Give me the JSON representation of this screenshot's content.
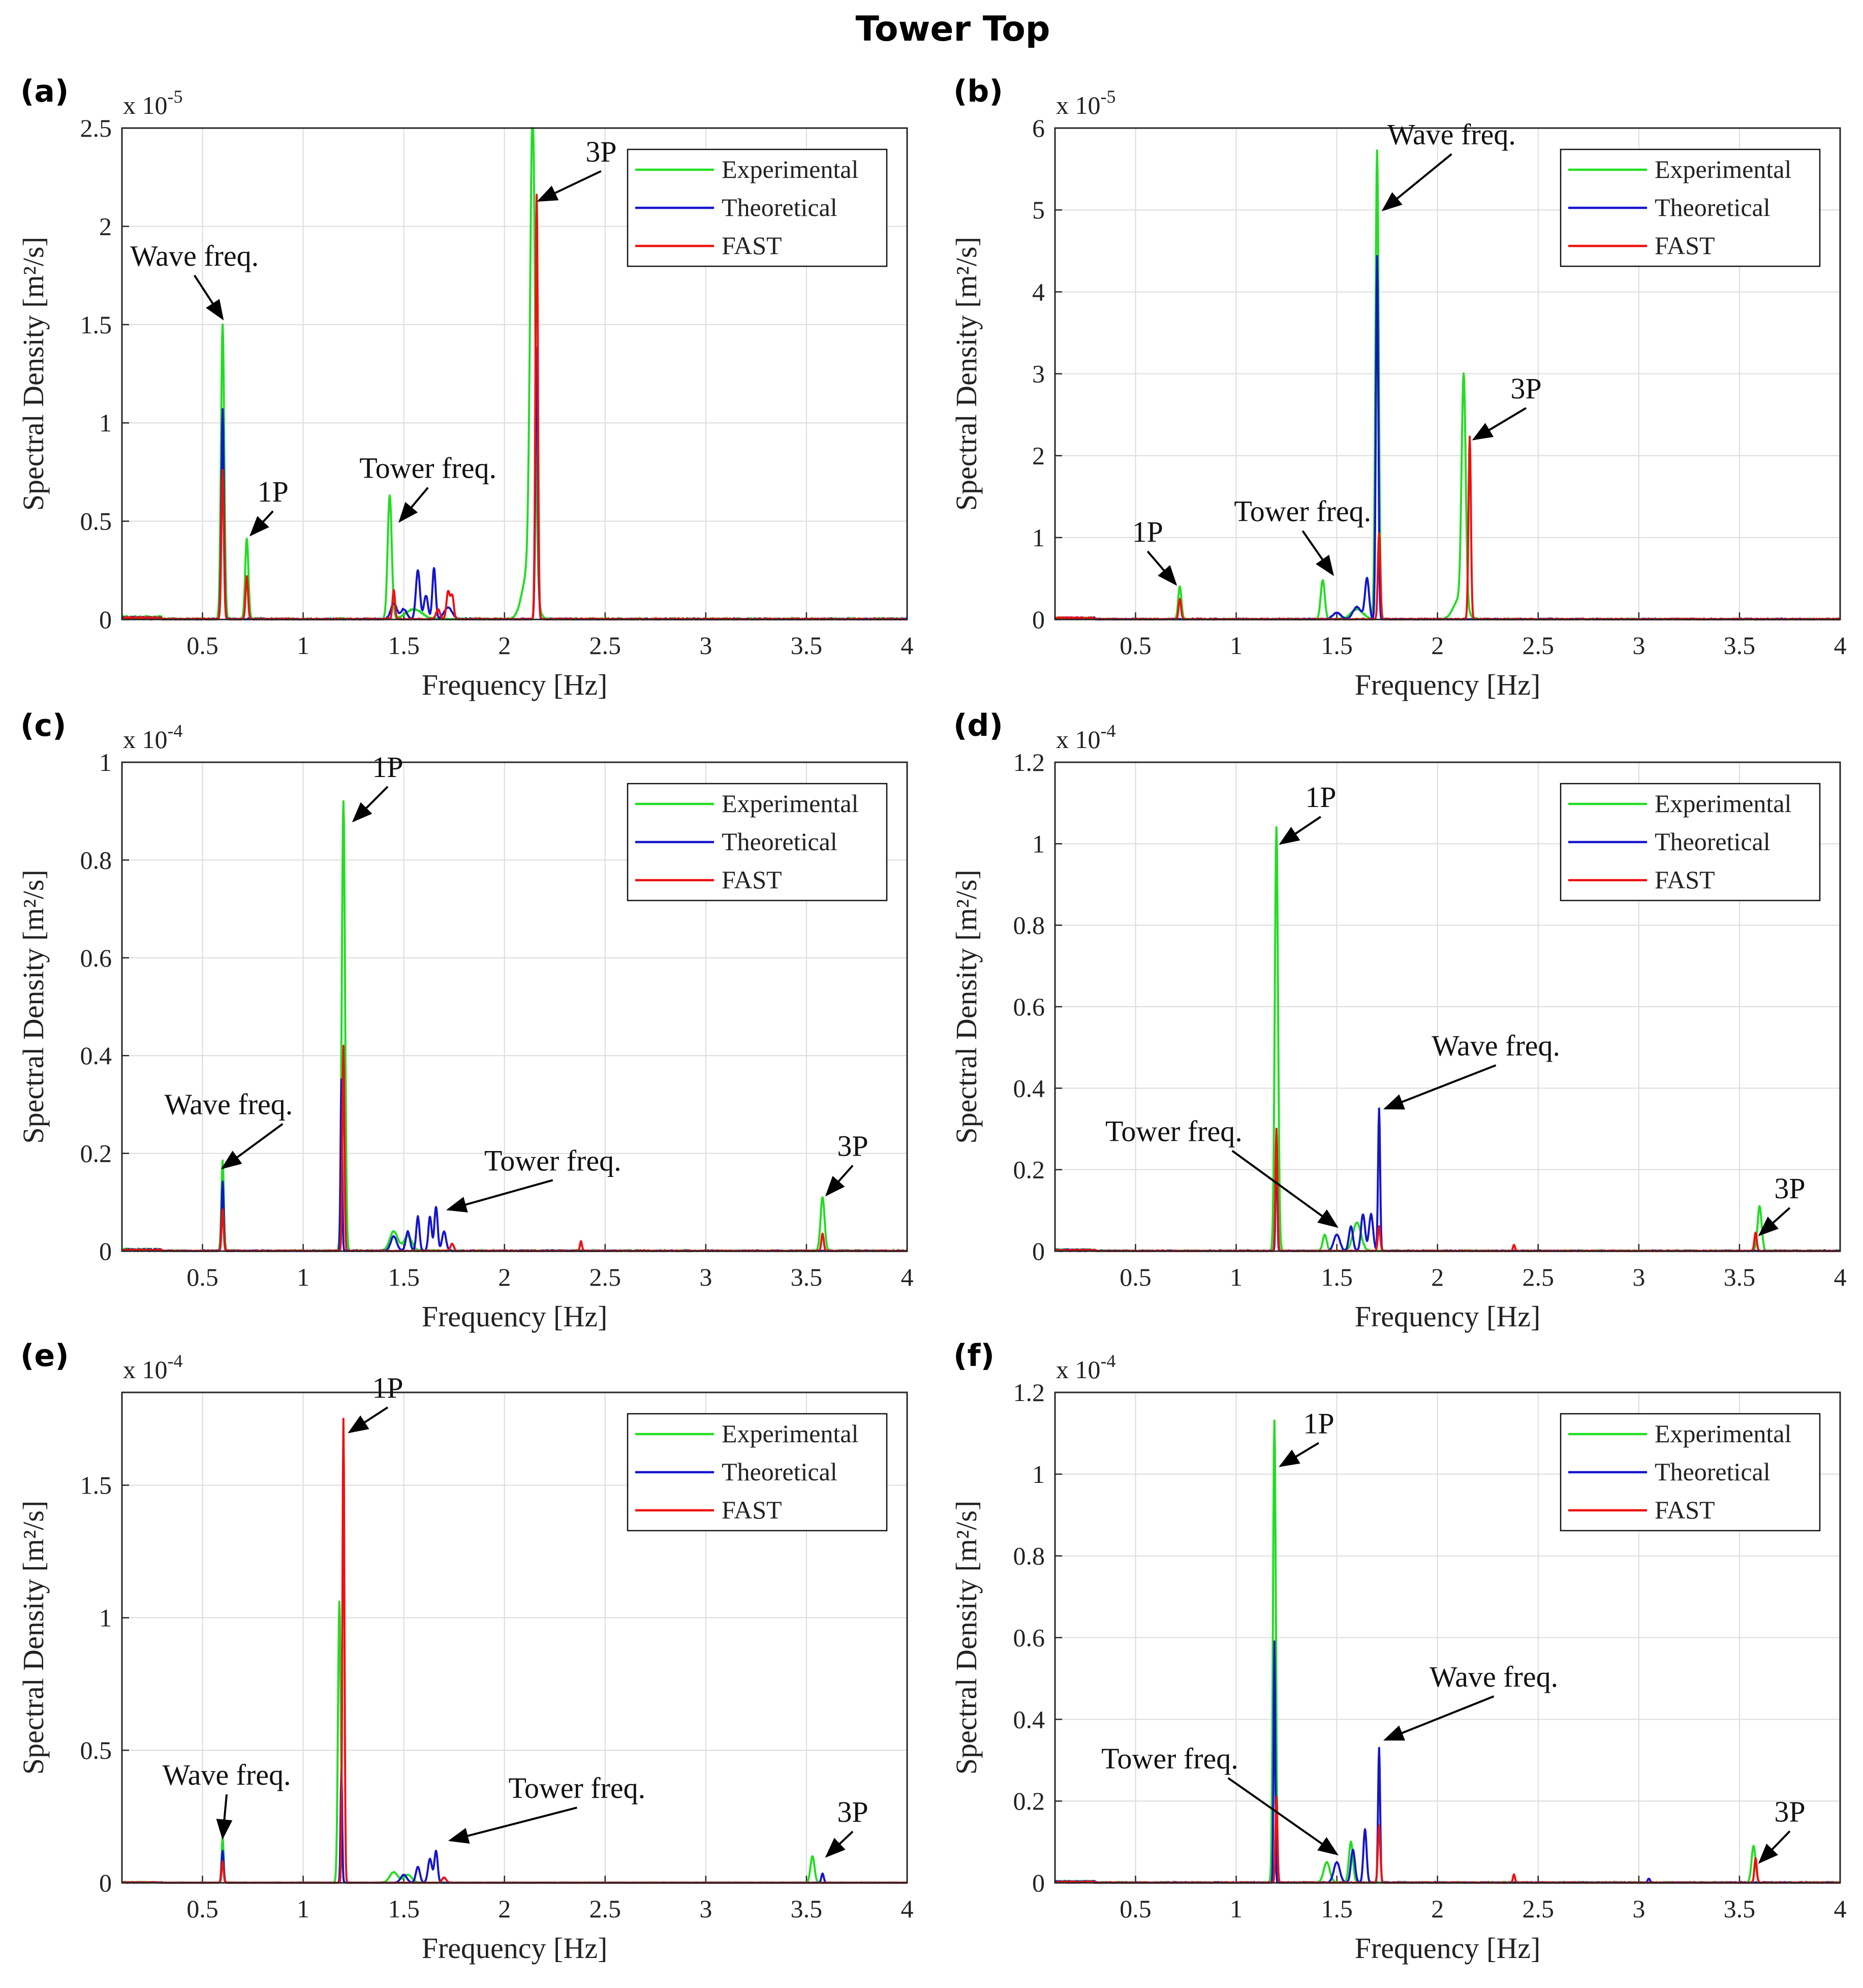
{
  "figure_title": "Tower Top",
  "colors": {
    "experimental": "#22dd22",
    "theoretical": "#1515cc",
    "fast": "#ee1111",
    "grid": "#dcdcdc",
    "axis": "#262626"
  },
  "chart_data": [
    {
      "type": "line",
      "panel_label": "(a)",
      "exponent_base": "x 10",
      "exponent": "-5",
      "xlabel": "Frequency [Hz]",
      "ylabel": "Spectral Density [m²/s]",
      "xlim": [
        0.1,
        4
      ],
      "ylim": [
        0,
        2.5
      ],
      "xticks": [
        0.5,
        1,
        1.5,
        2,
        2.5,
        3,
        3.5,
        4
      ],
      "yticks": [
        0,
        0.5,
        1,
        1.5,
        2,
        2.5
      ],
      "ytick_labels": [
        "0",
        "0.5",
        "1",
        "1.5",
        "2",
        "2.5"
      ],
      "grid": true,
      "legend": [
        "Experimental",
        "Theoretical",
        "FAST"
      ],
      "legend_position": "top-right",
      "series": [
        {
          "name": "Experimental",
          "peaks": [
            [
              0.6,
              1.5,
              0.008
            ],
            [
              0.72,
              0.41,
              0.008
            ],
            [
              1.43,
              0.63,
              0.01
            ],
            [
              1.55,
              0.05,
              0.04
            ],
            [
              2.14,
              2.42,
              0.012
            ],
            [
              2.12,
              0.25,
              0.03
            ]
          ],
          "noise": 0.02
        },
        {
          "name": "Theoretical",
          "peaks": [
            [
              0.6,
              1.07,
              0.006
            ],
            [
              1.45,
              0.08,
              0.015
            ],
            [
              1.5,
              0.05,
              0.015
            ],
            [
              1.57,
              0.25,
              0.01
            ],
            [
              1.61,
              0.12,
              0.01
            ],
            [
              1.65,
              0.26,
              0.008
            ],
            [
              1.72,
              0.06,
              0.02
            ],
            [
              2.16,
              1.38,
              0.006
            ]
          ],
          "noise": 0.015
        },
        {
          "name": "FAST",
          "peaks": [
            [
              0.6,
              0.76,
              0.006
            ],
            [
              0.72,
              0.22,
              0.006
            ],
            [
              1.45,
              0.15,
              0.006
            ],
            [
              1.67,
              0.05,
              0.01
            ],
            [
              1.72,
              0.14,
              0.008
            ],
            [
              1.74,
              0.12,
              0.008
            ],
            [
              2.16,
              2.16,
              0.006
            ]
          ],
          "noise": 0.015
        }
      ],
      "annotations": [
        {
          "text": "Wave freq.",
          "x": 0.46,
          "y": 1.8,
          "ax": 0.6,
          "ay": 1.53,
          "anchor": "middle"
        },
        {
          "text": "1P",
          "x": 0.85,
          "y": 0.6,
          "ax": 0.74,
          "ay": 0.43,
          "anchor": "middle"
        },
        {
          "text": "Tower freq.",
          "x": 1.62,
          "y": 0.72,
          "ax": 1.48,
          "ay": 0.5,
          "anchor": "middle"
        },
        {
          "text": "3P",
          "x": 2.48,
          "y": 2.33,
          "ax": 2.17,
          "ay": 2.13,
          "anchor": "middle"
        }
      ]
    },
    {
      "type": "line",
      "panel_label": "(b)",
      "exponent_base": "x 10",
      "exponent": "-5",
      "xlabel": "Frequency [Hz]",
      "ylabel": "Spectral Density [m²/s]",
      "xlim": [
        0.1,
        4
      ],
      "ylim": [
        0,
        6
      ],
      "xticks": [
        0.5,
        1,
        1.5,
        2,
        2.5,
        3,
        3.5,
        4
      ],
      "yticks": [
        0,
        1,
        2,
        3,
        4,
        5,
        6
      ],
      "ytick_labels": [
        "0",
        "1",
        "2",
        "3",
        "4",
        "5",
        "6"
      ],
      "grid": true,
      "legend": [
        "Experimental",
        "Theoretical",
        "FAST"
      ],
      "legend_position": "top-right",
      "series": [
        {
          "name": "Experimental",
          "peaks": [
            [
              0.72,
              0.4,
              0.008
            ],
            [
              1.43,
              0.48,
              0.01
            ],
            [
              1.6,
              0.12,
              0.03
            ],
            [
              1.7,
              5.72,
              0.008
            ],
            [
              2.13,
              2.8,
              0.01
            ],
            [
              2.11,
              0.25,
              0.03
            ]
          ],
          "noise": 0.03
        },
        {
          "name": "Theoretical",
          "peaks": [
            [
              1.5,
              0.08,
              0.02
            ],
            [
              1.6,
              0.15,
              0.02
            ],
            [
              1.65,
              0.5,
              0.01
            ],
            [
              1.7,
              4.43,
              0.006
            ]
          ],
          "noise": 0.03
        },
        {
          "name": "FAST",
          "peaks": [
            [
              0.72,
              0.25,
              0.006
            ],
            [
              1.71,
              1.05,
              0.006
            ],
            [
              2.16,
              2.23,
              0.006
            ]
          ],
          "noise": 0.03
        }
      ],
      "annotations": [
        {
          "text": "Wave freq.",
          "x": 2.07,
          "y": 5.8,
          "ax": 1.73,
          "ay": 5.0,
          "anchor": "middle"
        },
        {
          "text": "3P",
          "x": 2.44,
          "y": 2.7,
          "ax": 2.18,
          "ay": 2.2,
          "anchor": "middle"
        },
        {
          "text": "Tower freq.",
          "x": 1.33,
          "y": 1.2,
          "ax": 1.48,
          "ay": 0.55,
          "anchor": "middle"
        },
        {
          "text": "1P",
          "x": 0.56,
          "y": 0.95,
          "ax": 0.7,
          "ay": 0.43,
          "anchor": "middle"
        }
      ]
    },
    {
      "type": "line",
      "panel_label": "(c)",
      "exponent_base": "x 10",
      "exponent": "-4",
      "xlabel": "Frequency [Hz]",
      "ylabel": "Spectral Density [m²/s]",
      "xlim": [
        0.1,
        4
      ],
      "ylim": [
        0,
        1
      ],
      "xticks": [
        0.5,
        1,
        1.5,
        2,
        2.5,
        3,
        3.5,
        4
      ],
      "yticks": [
        0,
        0.2,
        0.4,
        0.6,
        0.8,
        1
      ],
      "ytick_labels": [
        "0",
        "0.2",
        "0.4",
        "0.6",
        "0.8",
        "1"
      ],
      "grid": true,
      "legend": [
        "Experimental",
        "Theoretical",
        "FAST"
      ],
      "legend_position": "top-right",
      "series": [
        {
          "name": "Experimental",
          "peaks": [
            [
              0.6,
              0.185,
              0.006
            ],
            [
              1.2,
              0.92,
              0.008
            ],
            [
              1.45,
              0.04,
              0.02
            ],
            [
              1.52,
              0.03,
              0.02
            ],
            [
              3.58,
              0.11,
              0.01
            ]
          ],
          "noise": 0.006
        },
        {
          "name": "Theoretical",
          "peaks": [
            [
              0.6,
              0.14,
              0.005
            ],
            [
              1.19,
              0.35,
              0.004
            ],
            [
              1.45,
              0.03,
              0.015
            ],
            [
              1.52,
              0.04,
              0.01
            ],
            [
              1.57,
              0.07,
              0.008
            ],
            [
              1.63,
              0.07,
              0.008
            ],
            [
              1.66,
              0.09,
              0.008
            ],
            [
              1.7,
              0.04,
              0.01
            ]
          ],
          "noise": 0.005
        },
        {
          "name": "FAST",
          "peaks": [
            [
              0.6,
              0.085,
              0.005
            ],
            [
              1.2,
              0.42,
              0.005
            ],
            [
              1.74,
              0.015,
              0.008
            ],
            [
              2.38,
              0.02,
              0.005
            ],
            [
              3.58,
              0.035,
              0.006
            ]
          ],
          "noise": 0.004
        }
      ],
      "annotations": [
        {
          "text": "Wave freq.",
          "x": 0.31,
          "y": 0.28,
          "ax": 0.6,
          "ay": 0.17,
          "anchor": "start"
        },
        {
          "text": "1P",
          "x": 1.42,
          "y": 0.97,
          "ax": 1.25,
          "ay": 0.88,
          "anchor": "middle"
        },
        {
          "text": "Tower freq.",
          "x": 2.24,
          "y": 0.165,
          "ax": 1.72,
          "ay": 0.085,
          "anchor": "middle"
        },
        {
          "text": "3P",
          "x": 3.73,
          "y": 0.195,
          "ax": 3.6,
          "ay": 0.115,
          "anchor": "middle"
        }
      ]
    },
    {
      "type": "line",
      "panel_label": "(d)",
      "exponent_base": "x 10",
      "exponent": "-4",
      "xlabel": "Frequency [Hz]",
      "ylabel": "Spectral Density [m²/s]",
      "xlim": [
        0.1,
        4
      ],
      "ylim": [
        0,
        1.2
      ],
      "xticks": [
        0.5,
        1,
        1.5,
        2,
        2.5,
        3,
        3.5,
        4
      ],
      "yticks": [
        0,
        0.2,
        0.4,
        0.6,
        0.8,
        1,
        1.2
      ],
      "ytick_labels": [
        "0",
        "0.2",
        "0.4",
        "0.6",
        "0.8",
        "1",
        "1.2"
      ],
      "grid": true,
      "legend": [
        "Experimental",
        "Theoretical",
        "FAST"
      ],
      "legend_position": "top-right",
      "series": [
        {
          "name": "Experimental",
          "peaks": [
            [
              1.2,
              1.04,
              0.008
            ],
            [
              1.44,
              0.04,
              0.01
            ],
            [
              1.6,
              0.07,
              0.02
            ],
            [
              3.6,
              0.11,
              0.01
            ]
          ],
          "noise": 0.006
        },
        {
          "name": "Theoretical",
          "peaks": [
            [
              1.2,
              0.3,
              0.004
            ],
            [
              1.5,
              0.04,
              0.015
            ],
            [
              1.57,
              0.06,
              0.01
            ],
            [
              1.63,
              0.09,
              0.01
            ],
            [
              1.67,
              0.09,
              0.01
            ],
            [
              1.71,
              0.35,
              0.005
            ]
          ],
          "noise": 0.005
        },
        {
          "name": "FAST",
          "peaks": [
            [
              1.2,
              0.3,
              0.005
            ],
            [
              1.71,
              0.06,
              0.006
            ],
            [
              2.38,
              0.015,
              0.005
            ],
            [
              3.58,
              0.045,
              0.006
            ]
          ],
          "noise": 0.004
        }
      ],
      "annotations": [
        {
          "text": "1P",
          "x": 1.42,
          "y": 1.09,
          "ax": 1.22,
          "ay": 1.0,
          "anchor": "middle"
        },
        {
          "text": "Wave freq.",
          "x": 2.29,
          "y": 0.48,
          "ax": 1.74,
          "ay": 0.35,
          "anchor": "middle"
        },
        {
          "text": "Tower freq.",
          "x": 0.35,
          "y": 0.27,
          "ax": 1.5,
          "ay": 0.06,
          "anchor": "start"
        },
        {
          "text": "3P",
          "x": 3.75,
          "y": 0.13,
          "ax": 3.6,
          "ay": 0.04,
          "anchor": "middle"
        }
      ]
    },
    {
      "type": "line",
      "panel_label": "(e)",
      "exponent_base": "x 10",
      "exponent": "-4",
      "xlabel": "Frequency [Hz]",
      "ylabel": "Spectral Density [m²/s]",
      "xlim": [
        0.1,
        4
      ],
      "ylim": [
        0,
        1.85
      ],
      "xticks": [
        0.5,
        1,
        1.5,
        2,
        2.5,
        3,
        3.5,
        4
      ],
      "yticks": [
        0,
        0.5,
        1,
        1.5
      ],
      "ytick_labels": [
        "0",
        "0.5",
        "1",
        "1.5"
      ],
      "grid": true,
      "legend": [
        "Experimental",
        "Theoretical",
        "FAST"
      ],
      "legend_position": "top-right",
      "series": [
        {
          "name": "Experimental",
          "peaks": [
            [
              0.6,
              0.17,
              0.005
            ],
            [
              1.18,
              1.06,
              0.007
            ],
            [
              1.45,
              0.04,
              0.02
            ],
            [
              1.52,
              0.03,
              0.02
            ],
            [
              3.53,
              0.1,
              0.01
            ]
          ],
          "noise": 0.004
        },
        {
          "name": "Theoretical",
          "peaks": [
            [
              0.6,
              0.12,
              0.005
            ],
            [
              1.19,
              0.42,
              0.004
            ],
            [
              1.5,
              0.03,
              0.015
            ],
            [
              1.57,
              0.06,
              0.01
            ],
            [
              1.63,
              0.09,
              0.01
            ],
            [
              1.66,
              0.12,
              0.008
            ],
            [
              3.58,
              0.035,
              0.006
            ]
          ],
          "noise": 0.003
        },
        {
          "name": "FAST",
          "peaks": [
            [
              0.6,
              0.08,
              0.005
            ],
            [
              1.2,
              1.75,
              0.005
            ],
            [
              1.7,
              0.02,
              0.01
            ]
          ],
          "noise": 0.003
        }
      ],
      "annotations": [
        {
          "text": "Wave freq.",
          "x": 0.62,
          "y": 0.37,
          "ax": 0.6,
          "ay": 0.17,
          "anchor": "middle"
        },
        {
          "text": "1P",
          "x": 1.42,
          "y": 1.83,
          "ax": 1.23,
          "ay": 1.7,
          "anchor": "middle"
        },
        {
          "text": "Tower freq.",
          "x": 2.36,
          "y": 0.32,
          "ax": 1.73,
          "ay": 0.16,
          "anchor": "middle"
        },
        {
          "text": "3P",
          "x": 3.73,
          "y": 0.23,
          "ax": 3.6,
          "ay": 0.1,
          "anchor": "middle"
        }
      ]
    },
    {
      "type": "line",
      "panel_label": "(f)",
      "exponent_base": "x 10",
      "exponent": "-4",
      "xlabel": "Frequency [Hz]",
      "ylabel": "Spectral Density [m²/s]",
      "xlim": [
        0.1,
        4
      ],
      "ylim": [
        0,
        1.2
      ],
      "xticks": [
        0.5,
        1,
        1.5,
        2,
        2.5,
        3,
        3.5,
        4
      ],
      "yticks": [
        0,
        0.2,
        0.4,
        0.6,
        0.8,
        1,
        1.2
      ],
      "ytick_labels": [
        "0",
        "0.2",
        "0.4",
        "0.6",
        "0.8",
        "1",
        "1.2"
      ],
      "grid": true,
      "legend": [
        "Experimental",
        "Theoretical",
        "FAST"
      ],
      "legend_position": "top-right",
      "series": [
        {
          "name": "Experimental",
          "peaks": [
            [
              1.19,
              1.13,
              0.007
            ],
            [
              1.45,
              0.05,
              0.015
            ],
            [
              1.57,
              0.1,
              0.01
            ],
            [
              3.57,
              0.09,
              0.01
            ]
          ],
          "noise": 0.006
        },
        {
          "name": "Theoretical",
          "peaks": [
            [
              1.19,
              0.59,
              0.004
            ],
            [
              1.5,
              0.05,
              0.015
            ],
            [
              1.58,
              0.08,
              0.01
            ],
            [
              1.64,
              0.13,
              0.008
            ],
            [
              1.71,
              0.33,
              0.005
            ],
            [
              3.05,
              0.01,
              0.005
            ]
          ],
          "noise": 0.005
        },
        {
          "name": "FAST",
          "peaks": [
            [
              1.2,
              0.21,
              0.005
            ],
            [
              1.71,
              0.14,
              0.006
            ],
            [
              2.38,
              0.02,
              0.005
            ],
            [
              3.58,
              0.06,
              0.006
            ]
          ],
          "noise": 0.004
        }
      ],
      "annotations": [
        {
          "text": "1P",
          "x": 1.41,
          "y": 1.1,
          "ax": 1.22,
          "ay": 1.02,
          "anchor": "middle"
        },
        {
          "text": "Wave freq.",
          "x": 2.28,
          "y": 0.48,
          "ax": 1.74,
          "ay": 0.35,
          "anchor": "middle"
        },
        {
          "text": "Tower freq.",
          "x": 0.33,
          "y": 0.28,
          "ax": 1.5,
          "ay": 0.07,
          "anchor": "start"
        },
        {
          "text": "3P",
          "x": 3.75,
          "y": 0.15,
          "ax": 3.6,
          "ay": 0.05,
          "anchor": "middle"
        }
      ]
    }
  ]
}
